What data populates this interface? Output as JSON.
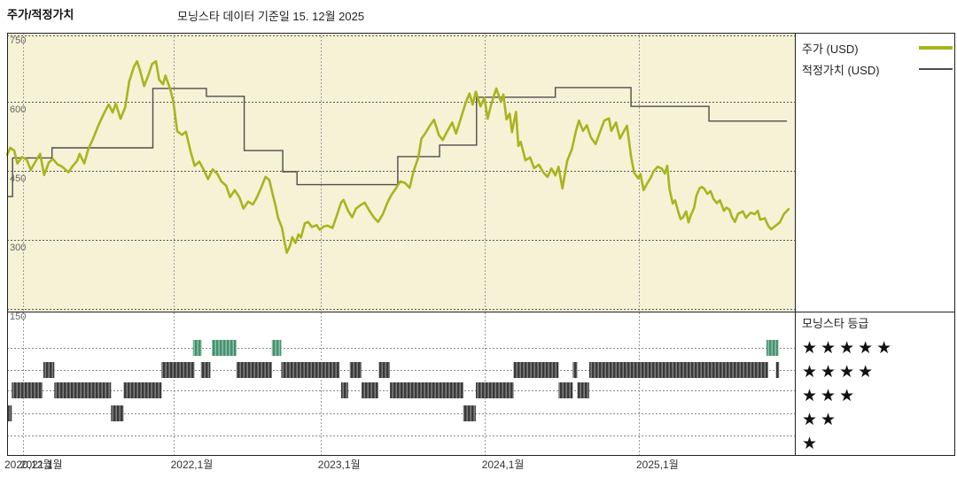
{
  "title": "주가/적정가치",
  "subtitle": "모닝스타 데이터 기준일 15. 12월 2025",
  "legend": {
    "price_label": "주가 (USD)",
    "fair_value_label": "적정가치 (USD)"
  },
  "rating_legend": {
    "title": "모닝스타 등급",
    "levels": [
      5,
      4,
      3,
      2,
      1
    ]
  },
  "colors": {
    "price": "#a9b41e",
    "fair_value": "#4d4d4d",
    "plot_bg": "#f5f2d6",
    "grid_h": "#555555",
    "grid_v": "#999999",
    "rating_row_line": "#888888",
    "rating_dark_base": "#3a3a3a",
    "rating_dark_stripe": "#9a9a9a",
    "rating_green_base": "#44906f",
    "rating_green_stripe": "#a9d4bd",
    "frame": "#222222",
    "y_tick_color": "#666666",
    "x_tick_color": "#333333"
  },
  "chart_data": {
    "type": "line",
    "title": "주가/적정가치",
    "subtitle": "모닝스타 데이터 기준일 15. 12월 2025",
    "y_axis": {
      "min": 150,
      "max": 750,
      "ticks": [
        750,
        600,
        450,
        300,
        150
      ],
      "grid": true
    },
    "x_axis": {
      "unit": "percent_of_range",
      "range_note": "2020-12-15 to 2025-12-15",
      "ticks": [
        {
          "pos": 0.0,
          "label": "2020,12월"
        },
        {
          "pos": 2.0,
          "label": "2021,1월"
        },
        {
          "pos": 21.1,
          "label": "2022,1월"
        },
        {
          "pos": 39.8,
          "label": "2023,1월"
        },
        {
          "pos": 60.6,
          "label": "2024,1월"
        },
        {
          "pos": 80.2,
          "label": "2025,1월"
        }
      ]
    },
    "series": [
      {
        "name": "주가 (USD)",
        "type": "line",
        "points": [
          [
            0,
            485
          ],
          [
            0.4,
            500
          ],
          [
            0.9,
            494
          ],
          [
            1.3,
            466
          ],
          [
            1.9,
            480
          ],
          [
            2.5,
            474
          ],
          [
            3.0,
            452
          ],
          [
            3.6,
            470
          ],
          [
            4.2,
            487
          ],
          [
            4.7,
            441
          ],
          [
            5.3,
            468
          ],
          [
            5.8,
            476
          ],
          [
            6.4,
            464
          ],
          [
            7.0,
            459
          ],
          [
            7.8,
            447
          ],
          [
            8.3,
            460
          ],
          [
            8.9,
            472
          ],
          [
            9.2,
            487
          ],
          [
            9.8,
            466
          ],
          [
            10.3,
            497
          ],
          [
            10.9,
            519
          ],
          [
            11.5,
            545
          ],
          [
            12.0,
            564
          ],
          [
            12.6,
            585
          ],
          [
            12.9,
            594
          ],
          [
            13.4,
            577
          ],
          [
            13.8,
            596
          ],
          [
            14.4,
            563
          ],
          [
            15.0,
            588
          ],
          [
            15.5,
            644
          ],
          [
            16.1,
            676
          ],
          [
            16.5,
            688
          ],
          [
            16.9,
            667
          ],
          [
            17.4,
            634
          ],
          [
            17.9,
            656
          ],
          [
            18.4,
            682
          ],
          [
            18.9,
            688
          ],
          [
            19.3,
            648
          ],
          [
            19.8,
            638
          ],
          [
            20.1,
            657
          ],
          [
            20.7,
            628
          ],
          [
            21.1,
            601
          ],
          [
            21.6,
            536
          ],
          [
            22.2,
            528
          ],
          [
            22.7,
            535
          ],
          [
            23.3,
            492
          ],
          [
            23.8,
            461
          ],
          [
            24.4,
            470
          ],
          [
            25.0,
            451
          ],
          [
            25.5,
            432
          ],
          [
            26.1,
            453
          ],
          [
            26.7,
            443
          ],
          [
            27.2,
            427
          ],
          [
            27.8,
            418
          ],
          [
            28.3,
            393
          ],
          [
            28.9,
            408
          ],
          [
            29.5,
            392
          ],
          [
            30.0,
            368
          ],
          [
            30.6,
            383
          ],
          [
            31.2,
            377
          ],
          [
            31.7,
            392
          ],
          [
            32.3,
            415
          ],
          [
            32.8,
            437
          ],
          [
            33.3,
            430
          ],
          [
            33.7,
            400
          ],
          [
            34.1,
            373
          ],
          [
            34.4,
            348
          ],
          [
            34.9,
            326
          ],
          [
            35.2,
            298
          ],
          [
            35.5,
            272
          ],
          [
            35.9,
            287
          ],
          [
            36.2,
            306
          ],
          [
            36.6,
            293
          ],
          [
            37.0,
            312
          ],
          [
            37.3,
            305
          ],
          [
            37.8,
            336
          ],
          [
            38.2,
            339
          ],
          [
            38.7,
            328
          ],
          [
            39.3,
            332
          ],
          [
            39.7,
            322
          ],
          [
            40.2,
            329
          ],
          [
            40.7,
            331
          ],
          [
            41.3,
            326
          ],
          [
            41.8,
            350
          ],
          [
            42.4,
            381
          ],
          [
            42.7,
            387
          ],
          [
            43.3,
            363
          ],
          [
            43.8,
            349
          ],
          [
            44.3,
            368
          ],
          [
            44.9,
            376
          ],
          [
            45.4,
            381
          ],
          [
            46.0,
            363
          ],
          [
            46.6,
            348
          ],
          [
            47.1,
            339
          ],
          [
            47.7,
            356
          ],
          [
            48.3,
            382
          ],
          [
            48.8,
            398
          ],
          [
            49.4,
            413
          ],
          [
            49.9,
            427
          ],
          [
            50.5,
            424
          ],
          [
            51.1,
            413
          ],
          [
            51.6,
            449
          ],
          [
            52.2,
            479
          ],
          [
            52.6,
            520
          ],
          [
            53.1,
            532
          ],
          [
            53.7,
            549
          ],
          [
            54.2,
            561
          ],
          [
            54.8,
            528
          ],
          [
            55.3,
            517
          ],
          [
            55.9,
            537
          ],
          [
            56.5,
            555
          ],
          [
            57.0,
            531
          ],
          [
            57.6,
            564
          ],
          [
            58.2,
            597
          ],
          [
            58.7,
            618
          ],
          [
            59.1,
            594
          ],
          [
            59.5,
            622
          ],
          [
            60.1,
            590
          ],
          [
            60.6,
            609
          ],
          [
            61.0,
            563
          ],
          [
            61.5,
            597
          ],
          [
            62.1,
            629
          ],
          [
            62.7,
            600
          ],
          [
            63.0,
            616
          ],
          [
            63.4,
            562
          ],
          [
            63.8,
            574
          ],
          [
            64.1,
            534
          ],
          [
            64.6,
            578
          ],
          [
            64.9,
            504
          ],
          [
            65.2,
            513
          ],
          [
            65.8,
            473
          ],
          [
            66.4,
            479
          ],
          [
            66.9,
            456
          ],
          [
            67.5,
            463
          ],
          [
            68.1,
            446
          ],
          [
            68.6,
            437
          ],
          [
            69.1,
            455
          ],
          [
            69.6,
            440
          ],
          [
            70.0,
            459
          ],
          [
            70.5,
            412
          ],
          [
            71.1,
            472
          ],
          [
            71.7,
            497
          ],
          [
            72.2,
            536
          ],
          [
            72.6,
            559
          ],
          [
            73.1,
            537
          ],
          [
            73.6,
            549
          ],
          [
            74.1,
            523
          ],
          [
            74.7,
            508
          ],
          [
            75.3,
            536
          ],
          [
            75.8,
            559
          ],
          [
            76.4,
            564
          ],
          [
            76.7,
            537
          ],
          [
            77.3,
            555
          ],
          [
            77.8,
            520
          ],
          [
            78.3,
            536
          ],
          [
            78.7,
            548
          ],
          [
            79.2,
            482
          ],
          [
            79.6,
            446
          ],
          [
            80.1,
            434
          ],
          [
            80.4,
            443
          ],
          [
            80.8,
            408
          ],
          [
            81.2,
            421
          ],
          [
            81.7,
            435
          ],
          [
            82.1,
            450
          ],
          [
            82.6,
            459
          ],
          [
            83.1,
            455
          ],
          [
            83.5,
            444
          ],
          [
            83.8,
            461
          ],
          [
            84.1,
            410
          ],
          [
            84.5,
            379
          ],
          [
            84.8,
            386
          ],
          [
            85.2,
            361
          ],
          [
            85.5,
            345
          ],
          [
            85.8,
            349
          ],
          [
            86.2,
            362
          ],
          [
            86.5,
            338
          ],
          [
            86.8,
            354
          ],
          [
            87.2,
            369
          ],
          [
            87.5,
            396
          ],
          [
            87.9,
            412
          ],
          [
            88.2,
            415
          ],
          [
            88.5,
            411
          ],
          [
            88.9,
            400
          ],
          [
            89.3,
            406
          ],
          [
            89.7,
            388
          ],
          [
            90.1,
            380
          ],
          [
            90.5,
            386
          ],
          [
            91.0,
            363
          ],
          [
            91.3,
            370
          ],
          [
            91.7,
            366
          ],
          [
            92.0,
            350
          ],
          [
            92.4,
            339
          ],
          [
            92.8,
            357
          ],
          [
            93.4,
            362
          ],
          [
            93.8,
            348
          ],
          [
            94.4,
            359
          ],
          [
            94.9,
            356
          ],
          [
            95.3,
            363
          ],
          [
            95.6,
            344
          ],
          [
            96.2,
            347
          ],
          [
            96.6,
            331
          ],
          [
            97.0,
            323
          ],
          [
            97.5,
            330
          ],
          [
            98.1,
            338
          ],
          [
            98.6,
            356
          ],
          [
            99.2,
            367
          ]
        ]
      },
      {
        "name": "적정가치 (USD)",
        "type": "step",
        "segments": [
          [
            0.0,
            0.7,
            394
          ],
          [
            0.7,
            5.7,
            478
          ],
          [
            5.7,
            18.5,
            500
          ],
          [
            18.5,
            25.3,
            629
          ],
          [
            25.3,
            30.1,
            612
          ],
          [
            30.1,
            35.0,
            494
          ],
          [
            35.0,
            36.8,
            448
          ],
          [
            36.8,
            49.6,
            420
          ],
          [
            49.6,
            54.9,
            481
          ],
          [
            54.9,
            59.6,
            506
          ],
          [
            59.6,
            69.6,
            610
          ],
          [
            69.6,
            79.2,
            631
          ],
          [
            79.2,
            89.1,
            590
          ],
          [
            89.1,
            99.0,
            558
          ]
        ]
      }
    ],
    "rating_timeline": {
      "rows": [
        5,
        4,
        3,
        2,
        1
      ],
      "segments": [
        {
          "stars": 2,
          "start": 0.0,
          "end": 0.6
        },
        {
          "stars": 3,
          "start": 0.6,
          "end": 4.5
        },
        {
          "stars": 4,
          "start": 4.6,
          "end": 6.0
        },
        {
          "stars": 3,
          "start": 6.0,
          "end": 13.2
        },
        {
          "stars": 2,
          "start": 13.2,
          "end": 14.8
        },
        {
          "stars": 3,
          "start": 14.8,
          "end": 19.6
        },
        {
          "stars": 4,
          "start": 19.6,
          "end": 23.8
        },
        {
          "stars": 5,
          "start": 23.6,
          "end": 24.7
        },
        {
          "stars": 4,
          "start": 24.6,
          "end": 25.8
        },
        {
          "stars": 5,
          "start": 26.0,
          "end": 29.1
        },
        {
          "stars": 4,
          "start": 29.1,
          "end": 33.6
        },
        {
          "stars": 5,
          "start": 33.6,
          "end": 34.8
        },
        {
          "stars": 4,
          "start": 34.8,
          "end": 42.2
        },
        {
          "stars": 3,
          "start": 42.4,
          "end": 43.3
        },
        {
          "stars": 4,
          "start": 43.5,
          "end": 45.0
        },
        {
          "stars": 3,
          "start": 45.0,
          "end": 47.1
        },
        {
          "stars": 4,
          "start": 47.2,
          "end": 48.6
        },
        {
          "stars": 3,
          "start": 48.6,
          "end": 57.9
        },
        {
          "stars": 2,
          "start": 57.9,
          "end": 59.5
        },
        {
          "stars": 3,
          "start": 59.5,
          "end": 64.3
        },
        {
          "stars": 4,
          "start": 64.3,
          "end": 70.0
        },
        {
          "stars": 3,
          "start": 70.0,
          "end": 71.8
        },
        {
          "stars": 4,
          "start": 71.8,
          "end": 72.4
        },
        {
          "stars": 3,
          "start": 72.4,
          "end": 73.9
        },
        {
          "stars": 4,
          "start": 73.9,
          "end": 96.6
        },
        {
          "stars": 5,
          "start": 96.4,
          "end": 97.9
        },
        {
          "stars": 4,
          "start": 97.6,
          "end": 98.0
        }
      ]
    }
  }
}
